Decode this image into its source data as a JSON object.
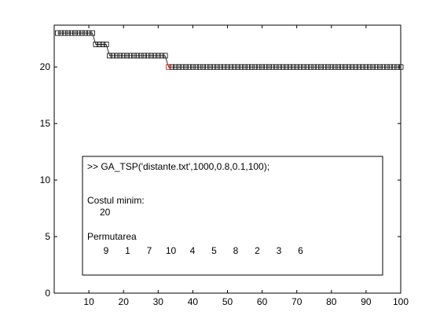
{
  "chart_data": {
    "type": "line",
    "title": "",
    "xlabel": "",
    "ylabel": "",
    "xlim": [
      0,
      100
    ],
    "ylim": [
      0,
      23.7
    ],
    "x_ticks": [
      10,
      20,
      30,
      40,
      50,
      60,
      70,
      80,
      90,
      100
    ],
    "y_ticks": [
      0,
      5,
      10,
      15,
      20
    ],
    "grid": false,
    "legend": false,
    "marker": "square",
    "colors": {
      "line": "#000000",
      "markers": "#000000",
      "highlight": "#ff0000"
    },
    "series": [
      {
        "x": [
          1,
          2,
          3,
          4,
          5,
          6,
          7,
          8,
          9,
          10,
          11,
          12,
          13,
          14,
          15,
          16,
          17,
          18,
          19,
          20,
          21,
          22,
          23,
          24,
          25,
          26,
          27,
          28,
          29,
          30,
          31,
          32,
          33,
          34,
          35,
          36,
          37,
          38,
          39,
          40,
          41,
          42,
          43,
          44,
          45,
          46,
          47,
          48,
          49,
          50,
          51,
          52,
          53,
          54,
          55,
          56,
          57,
          58,
          59,
          60,
          61,
          62,
          63,
          64,
          65,
          66,
          67,
          68,
          69,
          70,
          71,
          72,
          73,
          74,
          75,
          76,
          77,
          78,
          79,
          80,
          81,
          82,
          83,
          84,
          85,
          86,
          87,
          88,
          89,
          90,
          91,
          92,
          93,
          94,
          95,
          96,
          97,
          98,
          99,
          100
        ],
        "values": [
          23,
          23,
          23,
          23,
          23,
          23,
          23,
          23,
          23,
          23,
          23,
          22,
          22,
          22,
          22,
          21,
          21,
          21,
          21,
          21,
          21,
          21,
          21,
          21,
          21,
          21,
          21,
          21,
          21,
          21,
          21,
          21,
          20,
          20,
          20,
          20,
          20,
          20,
          20,
          20,
          20,
          20,
          20,
          20,
          20,
          20,
          20,
          20,
          20,
          20,
          20,
          20,
          20,
          20,
          20,
          20,
          20,
          20,
          20,
          20,
          20,
          20,
          20,
          20,
          20,
          20,
          20,
          20,
          20,
          20,
          20,
          20,
          20,
          20,
          20,
          20,
          20,
          20,
          20,
          20,
          20,
          20,
          20,
          20,
          20,
          20,
          20,
          20,
          20,
          20,
          20,
          20,
          20,
          20,
          20,
          20,
          20,
          20,
          20,
          20
        ]
      }
    ],
    "annotation": {
      "command": ">> GA_TSP('distante.txt',1000,0.8,0.1,100);",
      "cost_label": "Costul minim:",
      "cost_value": "20",
      "perm_label": "Permutarea",
      "permutation": [
        9,
        1,
        7,
        10,
        4,
        5,
        8,
        2,
        3,
        6
      ]
    }
  }
}
